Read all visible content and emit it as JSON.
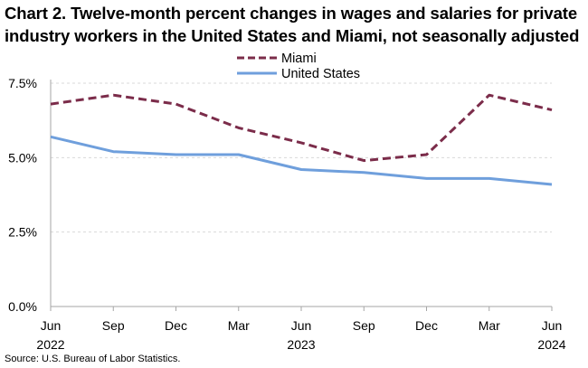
{
  "chart_data": {
    "type": "line",
    "title": "Chart 2. Twelve-month percent changes in wages and salaries for private industry workers in the United States and Miami, not seasonally adjusted",
    "x": [
      "Jun 2022",
      "Sep 2022",
      "Dec 2022",
      "Mar 2023",
      "Jun 2023",
      "Sep 2023",
      "Dec 2023",
      "Mar 2024",
      "Jun 2024"
    ],
    "x_tick_months": [
      "Jun",
      "Sep",
      "Dec",
      "Mar",
      "Jun",
      "Sep",
      "Dec",
      "Mar",
      "Jun"
    ],
    "x_tick_years": [
      "2022",
      "",
      "",
      "",
      "2023",
      "",
      "",
      "",
      "2024"
    ],
    "series": [
      {
        "name": "Miami",
        "color": "#7b2c4a",
        "style": "dashed",
        "values": [
          6.8,
          7.1,
          6.8,
          6.0,
          5.5,
          4.9,
          5.1,
          7.1,
          6.6
        ]
      },
      {
        "name": "United States",
        "color": "#6f9fdc",
        "style": "solid",
        "values": [
          5.7,
          5.2,
          5.1,
          5.1,
          4.6,
          4.5,
          4.3,
          4.3,
          4.1
        ]
      }
    ],
    "ylim": [
      0,
      7.5
    ],
    "y_ticks": [
      0,
      2.5,
      5.0,
      7.5
    ],
    "y_tick_labels": [
      "0.0%",
      "2.5%",
      "5.0%",
      "7.5%"
    ],
    "grid": true,
    "legend": "top-center",
    "xlabel": "",
    "ylabel": ""
  },
  "source": "Source: U.S. Bureau of Labor Statistics."
}
